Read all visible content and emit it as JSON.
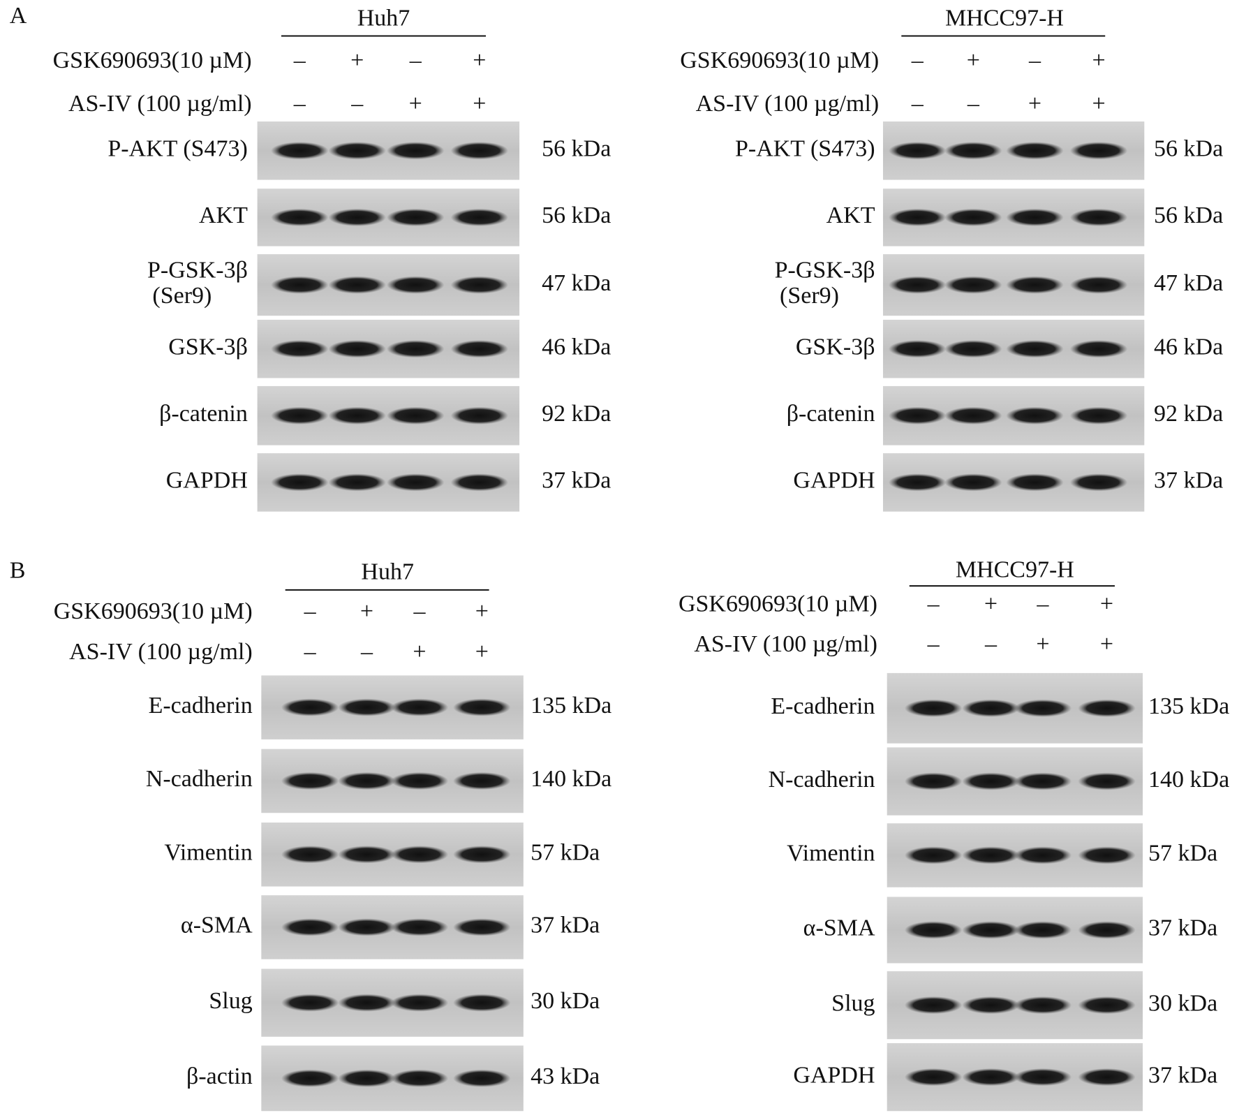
{
  "panels": [
    {
      "letter": "A",
      "blots": [
        {
          "cell_line": "Huh7",
          "treatments": [
            {
              "label": "GSK690693(10 µM)",
              "signs": [
                "–",
                "+",
                "–",
                "+"
              ]
            },
            {
              "label": "AS-IV (100 µg/ml)",
              "signs": [
                "–",
                "–",
                "+",
                "+"
              ]
            }
          ],
          "bands": [
            {
              "protein": "P-AKT (S473)",
              "size": "56 kDa"
            },
            {
              "protein": "AKT",
              "size": "56 kDa"
            },
            {
              "protein": "P-GSK-3β",
              "sublabel": "(Ser9)",
              "size": "47 kDa"
            },
            {
              "protein": "GSK-3β",
              "size": "46 kDa"
            },
            {
              "protein": "β-catenin",
              "size": "92 kDa"
            },
            {
              "protein": "GAPDH",
              "size": "37 kDa"
            }
          ]
        },
        {
          "cell_line": "MHCC97-H",
          "treatments": [
            {
              "label": "GSK690693(10 µM)",
              "signs": [
                "–",
                "+",
                "–",
                "+"
              ]
            },
            {
              "label": "AS-IV (100 µg/ml)",
              "signs": [
                "–",
                "–",
                "+",
                "+"
              ]
            }
          ],
          "bands": [
            {
              "protein": "P-AKT (S473)",
              "size": "56 kDa"
            },
            {
              "protein": "AKT",
              "size": "56 kDa"
            },
            {
              "protein": "P-GSK-3β",
              "sublabel": "(Ser9)",
              "size": "47 kDa"
            },
            {
              "protein": "GSK-3β",
              "size": "46 kDa"
            },
            {
              "protein": "β-catenin",
              "size": "92 kDa"
            },
            {
              "protein": "GAPDH",
              "size": "37 kDa"
            }
          ]
        }
      ]
    },
    {
      "letter": "B",
      "blots": [
        {
          "cell_line": "Huh7",
          "treatments": [
            {
              "label": "GSK690693(10 µM)",
              "signs": [
                "–",
                "+",
                "–",
                "+"
              ]
            },
            {
              "label": "AS-IV (100 µg/ml)",
              "signs": [
                "–",
                "–",
                "+",
                "+"
              ]
            }
          ],
          "bands": [
            {
              "protein": "E-cadherin",
              "size": "135 kDa"
            },
            {
              "protein": "N-cadherin",
              "size": "140 kDa"
            },
            {
              "protein": "Vimentin",
              "size": "57 kDa"
            },
            {
              "protein": "α-SMA",
              "size": "37 kDa"
            },
            {
              "protein": "Slug",
              "size": "30 kDa"
            },
            {
              "protein": "β-actin",
              "size": "43 kDa"
            }
          ]
        },
        {
          "cell_line": "MHCC97-H",
          "treatments": [
            {
              "label": "GSK690693(10 µM)",
              "signs": [
                "–",
                "+",
                "–",
                "+"
              ]
            },
            {
              "label": "AS-IV (100 µg/ml)",
              "signs": [
                "–",
                "–",
                "+",
                "+"
              ]
            }
          ],
          "bands": [
            {
              "protein": "E-cadherin",
              "size": "135 kDa"
            },
            {
              "protein": "N-cadherin",
              "size": "140 kDa"
            },
            {
              "protein": "Vimentin",
              "size": "57 kDa"
            },
            {
              "protein": "α-SMA",
              "size": "37 kDa"
            },
            {
              "protein": "Slug",
              "size": "30 kDa"
            },
            {
              "protein": "GAPDH",
              "size": "37 kDa"
            }
          ]
        }
      ]
    }
  ]
}
